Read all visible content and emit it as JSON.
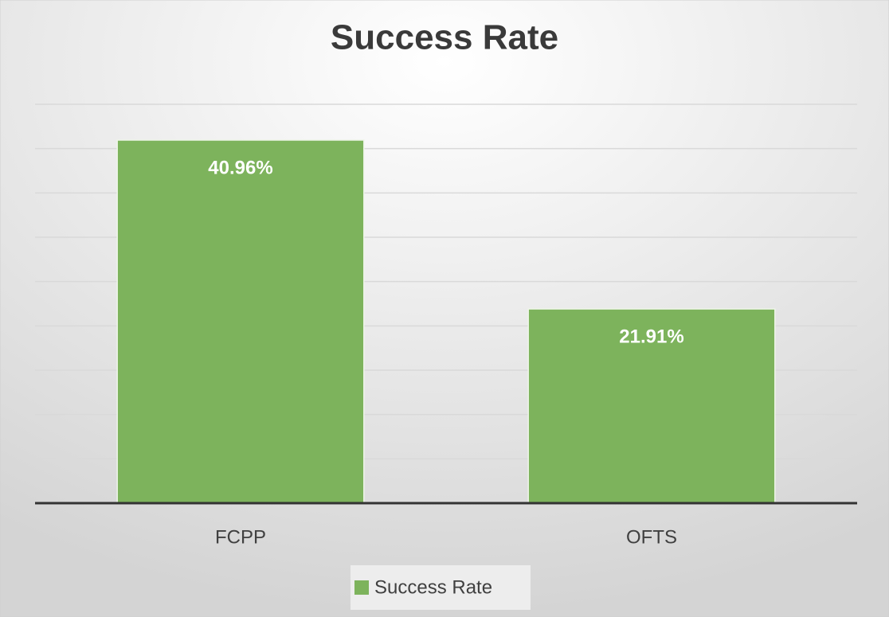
{
  "chart_data": {
    "type": "bar",
    "title": "Success Rate",
    "categories": [
      "FCPP",
      "OFTS"
    ],
    "series": [
      {
        "name": "Success Rate",
        "color": "#7db35c",
        "values": [
          40.96,
          21.91
        ],
        "value_labels": [
          "40.96%",
          "21.91%"
        ]
      }
    ],
    "ylim": [
      0,
      45
    ],
    "yticks": [
      0,
      5,
      10,
      15,
      20,
      25,
      30,
      35,
      40,
      45
    ],
    "grid": true,
    "legend": "bottom"
  }
}
